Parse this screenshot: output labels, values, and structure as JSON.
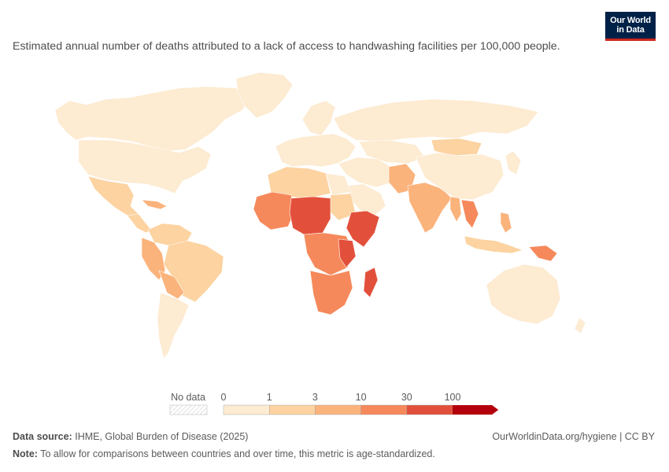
{
  "header": {
    "subtitle": "Estimated annual number of deaths attributed to a lack of access to handwashing facilities per 100,000 people.",
    "logo_line1": "Our World",
    "logo_line2": "in Data"
  },
  "legend": {
    "no_data_label": "No data",
    "bins": [
      {
        "label": "0",
        "color": "#fdebd2"
      },
      {
        "label": "1",
        "color": "#fcd3a1"
      },
      {
        "label": "3",
        "color": "#fbb37c"
      },
      {
        "label": "10",
        "color": "#f6895b"
      },
      {
        "label": "30",
        "color": "#e2503b"
      },
      {
        "label": "100",
        "color": "#b3000c"
      }
    ]
  },
  "palette": {
    "ocean": "#ffffff",
    "border": "#ffffff",
    "low": "#fdebd2",
    "mid": "#fcd3a1",
    "mid2": "#fbb37c",
    "high": "#f6895b",
    "higher": "#e2503b",
    "top": "#b3000c"
  },
  "footer": {
    "source_label": "Data source:",
    "source_text": "IHME, Global Burden of Disease (2025)",
    "url_text": "OurWorldinData.org/hygiene | CC BY",
    "note_label": "Note:",
    "note_text": "To allow for comparisons between countries and over time, this metric is age-standardized."
  }
}
